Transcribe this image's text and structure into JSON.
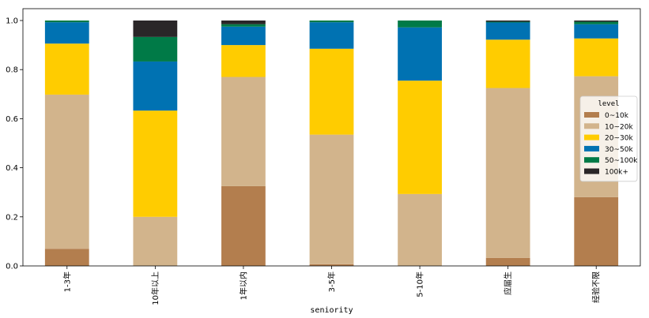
{
  "chart_data": {
    "type": "bar",
    "stacked": true,
    "categories": [
      "1-3年",
      "10年以上",
      "1年以内",
      "3-5年",
      "5-10年",
      "应届生",
      "经验不限"
    ],
    "series": [
      {
        "name": "0~10k",
        "color": "#b37e4e",
        "values": [
          0.07,
          0.0,
          0.325,
          0.007,
          0.0,
          0.033,
          0.28
        ]
      },
      {
        "name": "10~20k",
        "color": "#d2b48c",
        "values": [
          0.628,
          0.2,
          0.445,
          0.528,
          0.293,
          0.692,
          0.493
        ]
      },
      {
        "name": "20~30k",
        "color": "#ffcc00",
        "values": [
          0.208,
          0.433,
          0.13,
          0.35,
          0.462,
          0.197,
          0.154
        ]
      },
      {
        "name": "30~50k",
        "color": "#0072b2",
        "values": [
          0.087,
          0.2,
          0.075,
          0.108,
          0.217,
          0.07,
          0.058
        ]
      },
      {
        "name": "50~100k",
        "color": "#007a47",
        "values": [
          0.007,
          0.1,
          0.01,
          0.007,
          0.028,
          0.003,
          0.01
        ]
      },
      {
        "name": "100k+",
        "color": "#2a2628",
        "values": [
          0.0,
          0.067,
          0.015,
          0.0,
          0.0,
          0.005,
          0.005
        ]
      }
    ],
    "xlabel": "seniority",
    "ylabel": "",
    "ylim": [
      0,
      1.0
    ],
    "yticks": [
      "0.0",
      "0.2",
      "0.4",
      "0.6",
      "0.8",
      "1.0"
    ],
    "legend": {
      "title": "level",
      "placement": "right"
    },
    "grid": false
  }
}
